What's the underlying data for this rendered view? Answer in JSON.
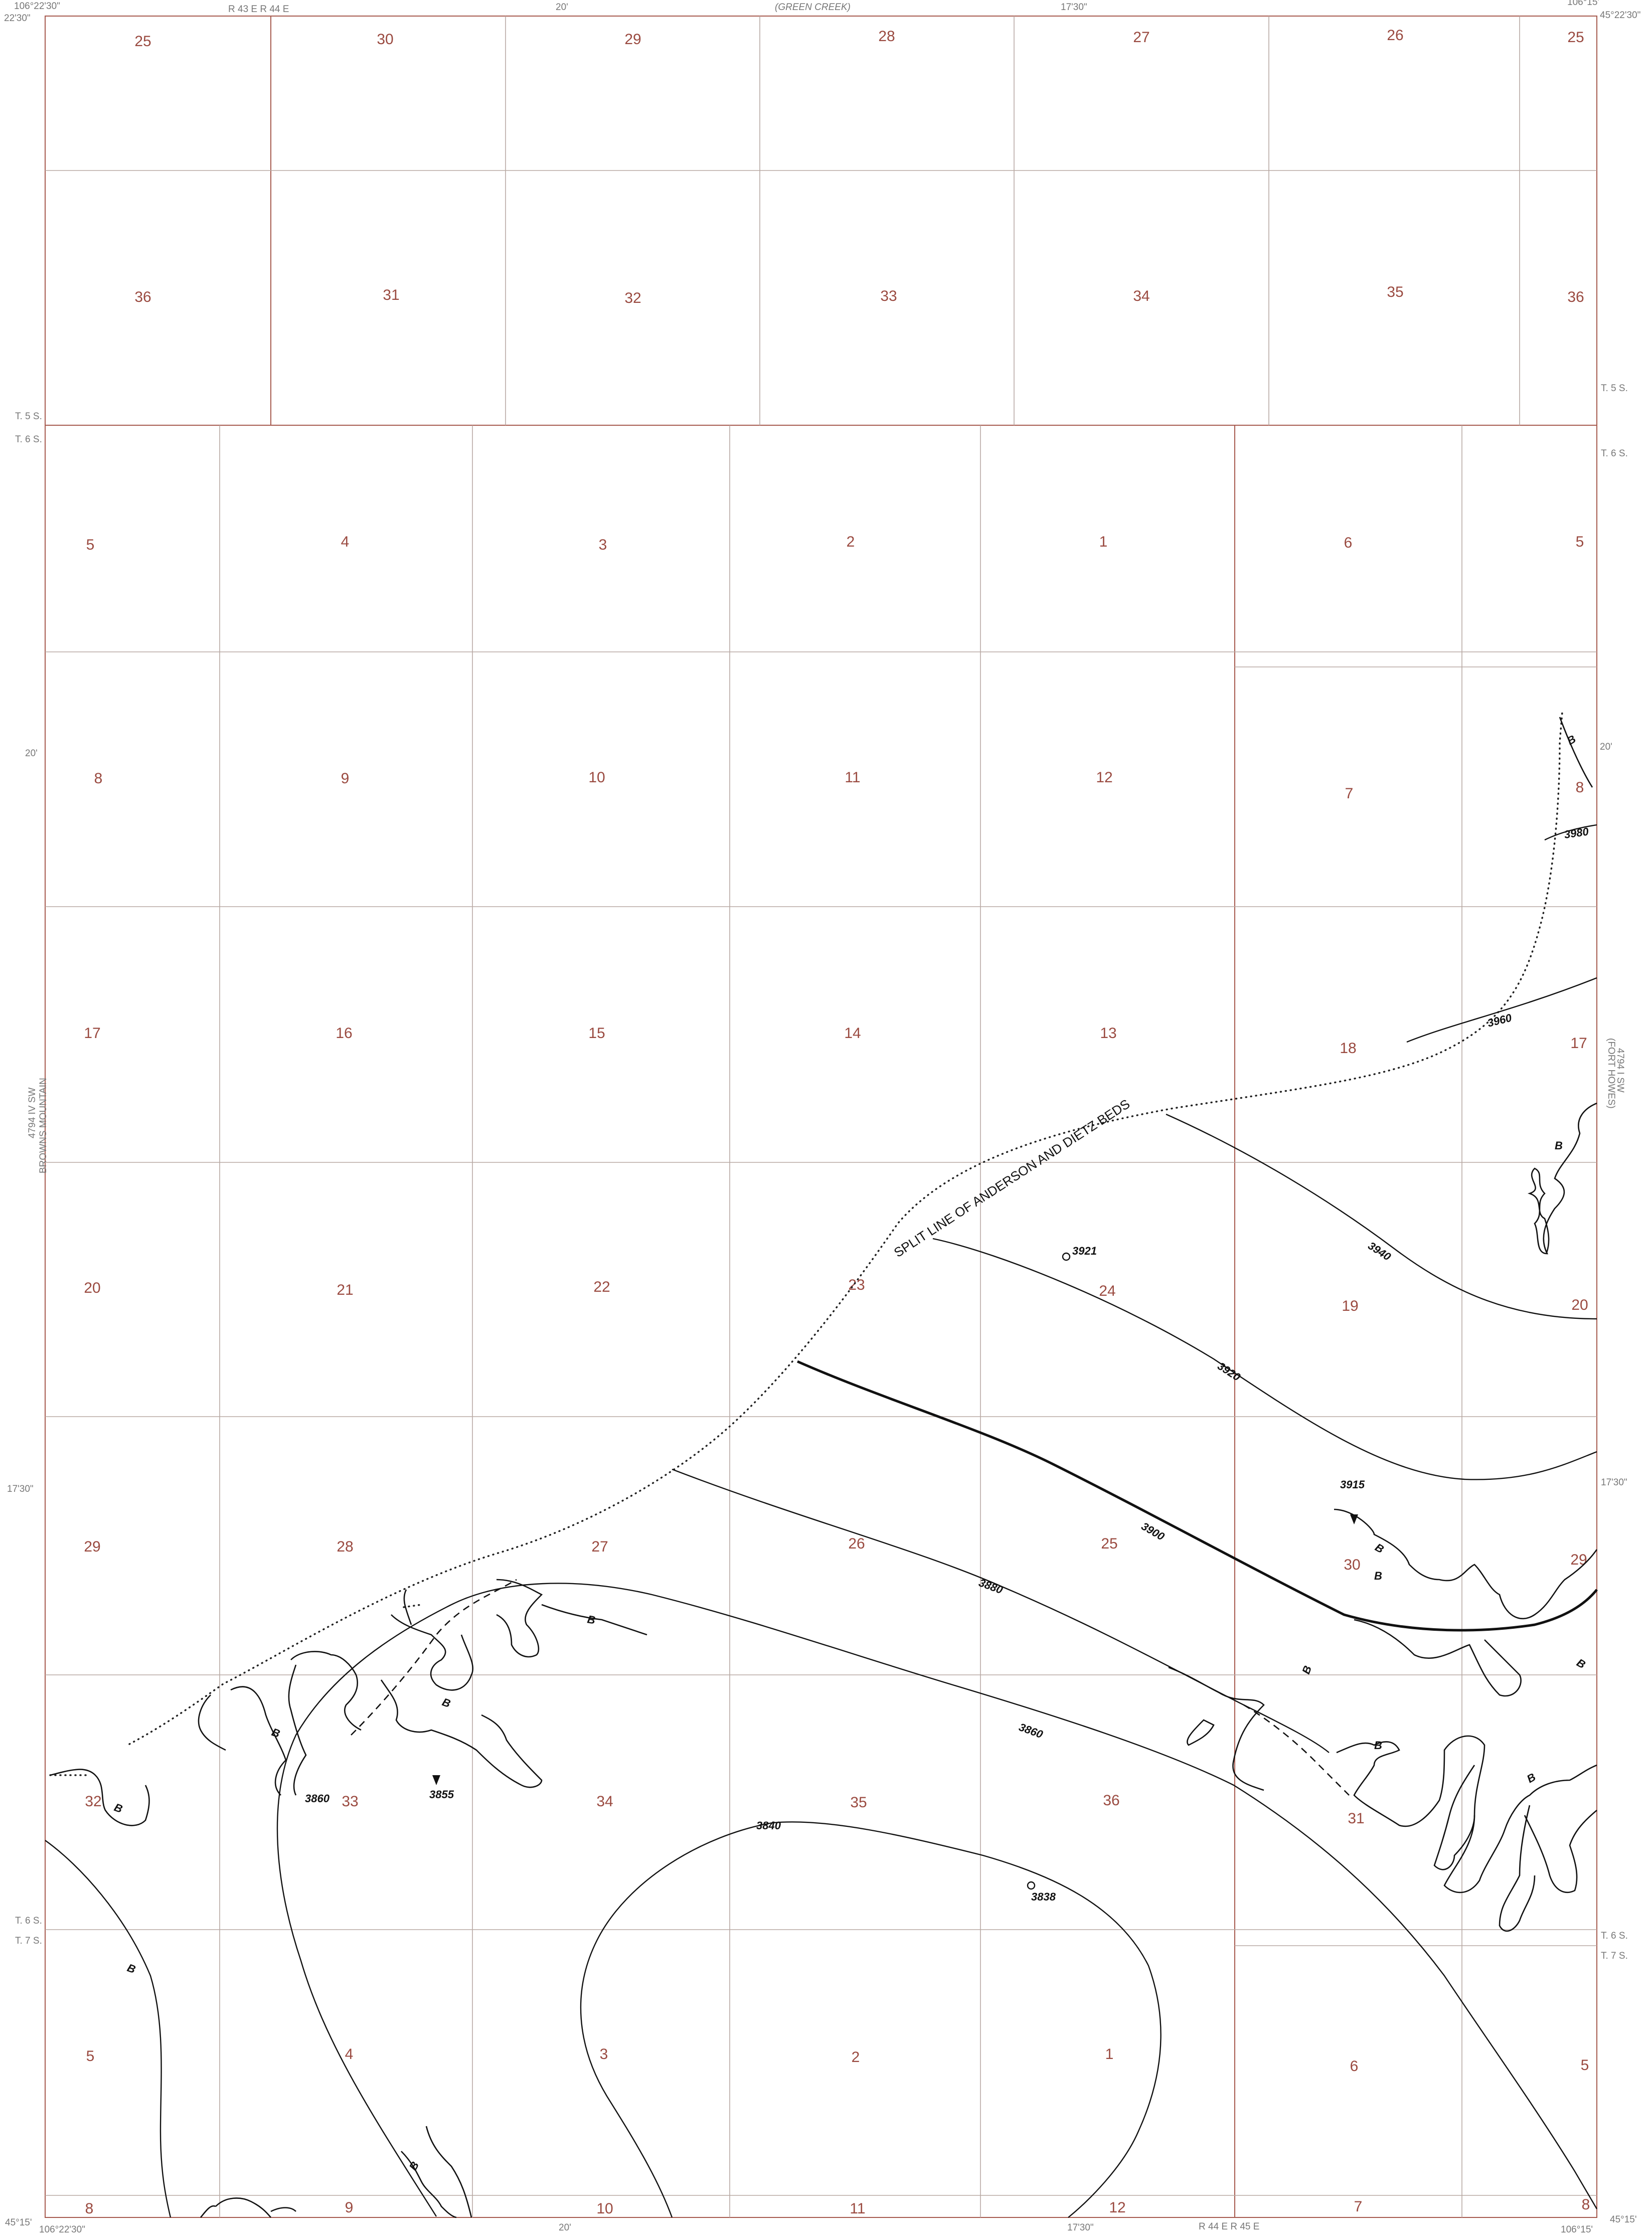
{
  "header": {
    "corner_nw_lon": "106°22'30\"",
    "corner_nw_lat": "22'30\"",
    "corner_ne_lon": "106°15'",
    "corner_ne_lat": "45°22'30\"",
    "top_tick_20": "20'",
    "top_tick_1730": "17'30\"",
    "adjacent_north": "(GREEN CREEK)",
    "range_top": "R 43 E   R 44 E"
  },
  "sides": {
    "west_sheet": "BROWNS MOUNTAIN",
    "west_quad_code": "4794 IV SW",
    "east_sheet": "(FORT HOWES)",
    "east_quad_code": "4794 I SW",
    "lat_20": "20'",
    "lat_1730": "17'30\"",
    "township_t5s": "T. 5 S.",
    "township_t6s": "T. 6 S.",
    "township_t7s": "T. 7 S."
  },
  "footer": {
    "corner_sw_lat": "45°15'",
    "corner_sw_lon": "106°22'30\"",
    "corner_se_lat": "45°15'",
    "corner_se_lon": "106°15'",
    "bottom_tick_20": "20'",
    "bottom_tick_1730": "17'30\"",
    "range_bottom": "R 44 E   R 45 E"
  },
  "sections": {
    "row1": [
      "25",
      "30",
      "29",
      "28",
      "27",
      "26",
      "25"
    ],
    "row2": [
      "36",
      "31",
      "32",
      "33",
      "34",
      "35",
      "36"
    ],
    "row3": [
      "5",
      "4",
      "3",
      "2",
      "1",
      "6",
      "5"
    ],
    "row4": [
      "8",
      "9",
      "10",
      "11",
      "12",
      "7",
      "8"
    ],
    "row5": [
      "17",
      "16",
      "15",
      "14",
      "13",
      "18",
      "17"
    ],
    "row6": [
      "20",
      "21",
      "22",
      "23",
      "24",
      "19",
      "20"
    ],
    "row7": [
      "29",
      "28",
      "27",
      "26",
      "25",
      "30",
      "29"
    ],
    "row8": [
      "32",
      "33",
      "34",
      "35",
      "36",
      "31"
    ],
    "row9": [
      "5",
      "4",
      "3",
      "2",
      "1",
      "6",
      "5"
    ],
    "row10": [
      "8",
      "9",
      "10",
      "11",
      "12",
      "7",
      "8"
    ]
  },
  "contours": [
    "3980",
    "3960",
    "3940",
    "3920",
    "3900",
    "3880",
    "3860",
    "3840",
    "3860"
  ],
  "spot_elevations": [
    "3921",
    "3915",
    "3855",
    "3838"
  ],
  "boundary_label": "SPLIT LINE OF ANDERSON AND DIETZ BEDS",
  "burn_symbol": "B",
  "colors": {
    "grid_red": "#a65a4e",
    "grid_gray": "#b8a9a3",
    "linework": "#111111",
    "section_text": "#9a4a40"
  }
}
